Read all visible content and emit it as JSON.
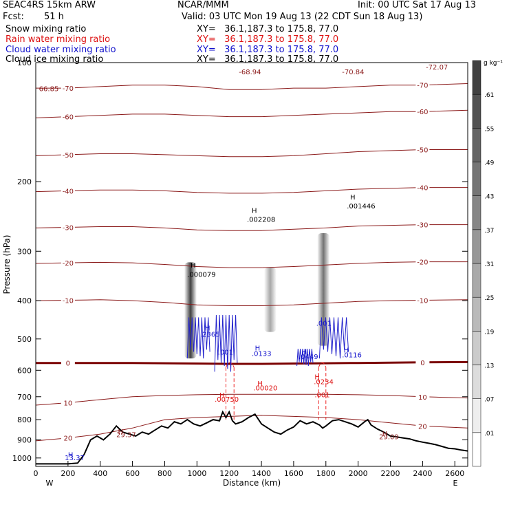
{
  "header": {
    "model": "SEAC4RS 15km ARW",
    "center": "NCAR/MMM",
    "init": "Init: 00 UTC Sat 17 Aug 13",
    "fcst_label": "Fcst:",
    "fcst_value": "51 h",
    "valid": "Valid: 03 UTC Mon 19 Aug 13 (22 CDT Sun 18 Aug 13)"
  },
  "fields": [
    {
      "name": "Snow mixing ratio",
      "xy": "XY=   36.1,187.3 to 175.8, 77.0",
      "color": "#000000"
    },
    {
      "name": "Rain water mixing ratio",
      "xy": "XY=   36.1,187.3 to 175.8, 77.0",
      "color": "#dd1111"
    },
    {
      "name": "Cloud water mixing ratio",
      "xy": "XY=   36.1,187.3 to 175.8, 77.0",
      "color": "#1111cc"
    },
    {
      "name": "Cloud ice mixing ratio",
      "xy": "XY=   36.1,187.3 to 175.8, 77.0",
      "color": "#000000"
    }
  ],
  "colors": {
    "temperature": "#8b1a1a",
    "zero_isotherm": "#7a0000",
    "terrain": "#000000",
    "rain": "#ee2222",
    "cloud_water": "#2222cc"
  },
  "chart_data": {
    "type": "cross-section",
    "ylabel": "Pressure (hPa)",
    "xlabel": "Distance (km)",
    "xlim": [
      0,
      2680
    ],
    "ylim": [
      100,
      1050
    ],
    "y_scale": "log",
    "y_ticks": [
      100,
      200,
      300,
      400,
      500,
      600,
      700,
      800,
      900,
      1000
    ],
    "x_ticks": [
      0,
      200,
      400,
      600,
      800,
      1000,
      1200,
      1400,
      1600,
      1800,
      2000,
      2200,
      2400,
      2600
    ],
    "x_end_labels": [
      "W",
      "E"
    ],
    "colorbar": {
      "unit": "g kg⁻¹",
      "levels": [
        ".01",
        ".07",
        ".13",
        ".19",
        ".25",
        ".31",
        ".37",
        ".43",
        ".49",
        ".55",
        ".61"
      ]
    },
    "terrain": {
      "x": [
        0,
        60,
        120,
        200,
        260,
        300,
        340,
        380,
        420,
        460,
        500,
        540,
        580,
        620,
        660,
        700,
        740,
        780,
        820,
        860,
        900,
        940,
        980,
        1020,
        1060,
        1100,
        1140,
        1160,
        1180,
        1200,
        1220,
        1240,
        1280,
        1320,
        1360,
        1400,
        1440,
        1480,
        1520,
        1560,
        1600,
        1640,
        1680,
        1720,
        1760,
        1780,
        1800,
        1840,
        1880,
        1920,
        1960,
        2000,
        2040,
        2060,
        2080,
        2120,
        2160,
        2200,
        2240,
        2280,
        2320,
        2360,
        2400,
        2440,
        2480,
        2520,
        2560,
        2600,
        2640,
        2680
      ],
      "p": [
        1035,
        1035,
        1035,
        1035,
        1030,
        980,
        900,
        880,
        900,
        870,
        830,
        860,
        870,
        880,
        860,
        870,
        850,
        830,
        840,
        810,
        820,
        800,
        820,
        830,
        815,
        800,
        805,
        765,
        790,
        765,
        805,
        820,
        810,
        790,
        775,
        820,
        840,
        860,
        870,
        850,
        835,
        805,
        820,
        810,
        825,
        840,
        830,
        805,
        800,
        810,
        820,
        835,
        810,
        800,
        825,
        845,
        860,
        880,
        885,
        890,
        895,
        905,
        912,
        918,
        925,
        935,
        945,
        948,
        955,
        960
      ]
    },
    "temperature_contours": [
      {
        "value": -70,
        "label": "-70",
        "p": [
          116,
          116,
          115,
          114,
          114,
          115,
          117,
          117,
          116,
          116,
          115,
          114,
          114,
          113
        ]
      },
      {
        "value": -60,
        "label": "-60",
        "p": [
          138,
          137,
          136,
          135,
          135,
          136,
          137,
          137,
          136,
          135,
          134,
          133,
          133,
          132
        ]
      },
      {
        "value": -50,
        "label": "-50",
        "p": [
          172,
          171,
          170,
          170,
          171,
          172,
          173,
          173,
          172,
          170,
          168,
          167,
          166,
          166
        ]
      },
      {
        "value": -40,
        "label": "-40",
        "p": [
          212,
          211,
          210,
          210,
          211,
          213,
          214,
          214,
          213,
          211,
          209,
          208,
          207,
          207
        ]
      },
      {
        "value": -30,
        "label": "-30",
        "p": [
          262,
          261,
          260,
          260,
          262,
          265,
          266,
          266,
          264,
          262,
          259,
          258,
          257,
          257
        ]
      },
      {
        "value": -20,
        "label": "-20",
        "p": [
          322,
          321,
          320,
          321,
          324,
          328,
          330,
          330,
          328,
          325,
          322,
          320,
          319,
          319
        ]
      },
      {
        "value": -10,
        "label": "-10",
        "p": [
          400,
          399,
          398,
          400,
          404,
          410,
          412,
          412,
          410,
          406,
          402,
          400,
          399,
          398
        ]
      },
      {
        "value": 0,
        "label": "0",
        "p": [
          575,
          575,
          575,
          575,
          576,
          577,
          578,
          578,
          577,
          576,
          575,
          574,
          573,
          572
        ]
      },
      {
        "value": 10,
        "label": "10",
        "p": [
          735,
          725,
          712,
          700,
          695,
          692,
          690,
          690,
          690,
          690,
          692,
          695,
          700,
          705
        ]
      },
      {
        "value": 20,
        "label": "20",
        "p": [
          905,
          890,
          870,
          840,
          800,
          790,
          785,
          780,
          785,
          790,
          800,
          815,
          830,
          840
        ]
      }
    ],
    "contour_x": [
      0,
      200,
      400,
      600,
      800,
      1000,
      1200,
      1400,
      1600,
      1800,
      2000,
      2200,
      2400,
      2680
    ],
    "annotations": [
      {
        "x": 20,
        "p": 118,
        "text": "66.85",
        "color": "#8b1a1a"
      },
      {
        "x": 1260,
        "p": 107,
        "text": "-68.94",
        "color": "#8b1a1a"
      },
      {
        "x": 1900,
        "p": 107,
        "text": "-70.84",
        "color": "#8b1a1a"
      },
      {
        "x": 2420,
        "p": 104,
        "text": "-72.07",
        "color": "#8b1a1a"
      },
      {
        "x": 960,
        "p": 330,
        "text": "H",
        "color": "#000000"
      },
      {
        "x": 940,
        "p": 348,
        "text": ".000079",
        "color": "#000000"
      },
      {
        "x": 1340,
        "p": 240,
        "text": "H",
        "color": "#000000"
      },
      {
        "x": 1310,
        "p": 253,
        "text": ".002208",
        "color": "#000000"
      },
      {
        "x": 1950,
        "p": 222,
        "text": "H",
        "color": "#000000"
      },
      {
        "x": 1930,
        "p": 234,
        "text": ".001446",
        "color": "#000000"
      },
      {
        "x": 1050,
        "p": 476,
        "text": "H",
        "color": "#1111cc"
      },
      {
        "x": 1020,
        "p": 493,
        "text": ".2365",
        "color": "#1111cc"
      },
      {
        "x": 1130,
        "p": 548,
        "text": ".001",
        "color": "#1111cc"
      },
      {
        "x": 1360,
        "p": 535,
        "text": "H",
        "color": "#1111cc"
      },
      {
        "x": 1340,
        "p": 552,
        "text": ".0133",
        "color": "#1111cc"
      },
      {
        "x": 1650,
        "p": 545,
        "text": "H",
        "color": "#1111cc"
      },
      {
        "x": 1630,
        "p": 562,
        "text": ".0449",
        "color": "#1111cc"
      },
      {
        "x": 1740,
        "p": 463,
        "text": ".001",
        "color": "#1111cc"
      },
      {
        "x": 1910,
        "p": 541,
        "text": "H",
        "color": "#1111cc"
      },
      {
        "x": 1900,
        "p": 557,
        "text": ".0116",
        "color": "#1111cc"
      },
      {
        "x": 1730,
        "p": 632,
        "text": "H",
        "color": "#dd1111"
      },
      {
        "x": 1725,
        "p": 650,
        "text": ".0234",
        "color": "#dd1111"
      },
      {
        "x": 1375,
        "p": 657,
        "text": "H",
        "color": "#dd1111"
      },
      {
        "x": 1350,
        "p": 675,
        "text": ".00020",
        "color": "#dd1111"
      },
      {
        "x": 1730,
        "p": 702,
        "text": ".001",
        "color": "#dd1111"
      },
      {
        "x": 1140,
        "p": 703,
        "text": "H",
        "color": "#dd1111"
      },
      {
        "x": 1110,
        "p": 720,
        "text": ".00750",
        "color": "#dd1111"
      },
      {
        "x": 510,
        "p": 870,
        "text": "H",
        "color": "#8b1a1a"
      },
      {
        "x": 500,
        "p": 886,
        "text": "29.37",
        "color": "#8b1a1a"
      },
      {
        "x": 2150,
        "p": 880,
        "text": "H",
        "color": "#8b1a1a"
      },
      {
        "x": 2130,
        "p": 897,
        "text": "29.09",
        "color": "#8b1a1a"
      },
      {
        "x": 200,
        "p": 995,
        "text": "H",
        "color": "#1111cc"
      },
      {
        "x": 180,
        "p": 1012,
        "text": "13.37",
        "color": "#1111cc"
      }
    ],
    "snow_plumes": [
      {
        "x": 960,
        "p_top": 320,
        "p_bottom": 560,
        "intensity": 0.75
      },
      {
        "x": 1455,
        "p_top": 330,
        "p_bottom": 480,
        "intensity": 0.35
      },
      {
        "x": 1785,
        "p_top": 270,
        "p_bottom": 520,
        "intensity": 0.55
      }
    ],
    "rain_columns": [
      {
        "x": [
          1180,
          1230
        ],
        "p_top": 590,
        "p_bottom": 800
      },
      {
        "x": [
          1755,
          1800
        ],
        "p_top": 590,
        "p_bottom": 800
      }
    ]
  }
}
